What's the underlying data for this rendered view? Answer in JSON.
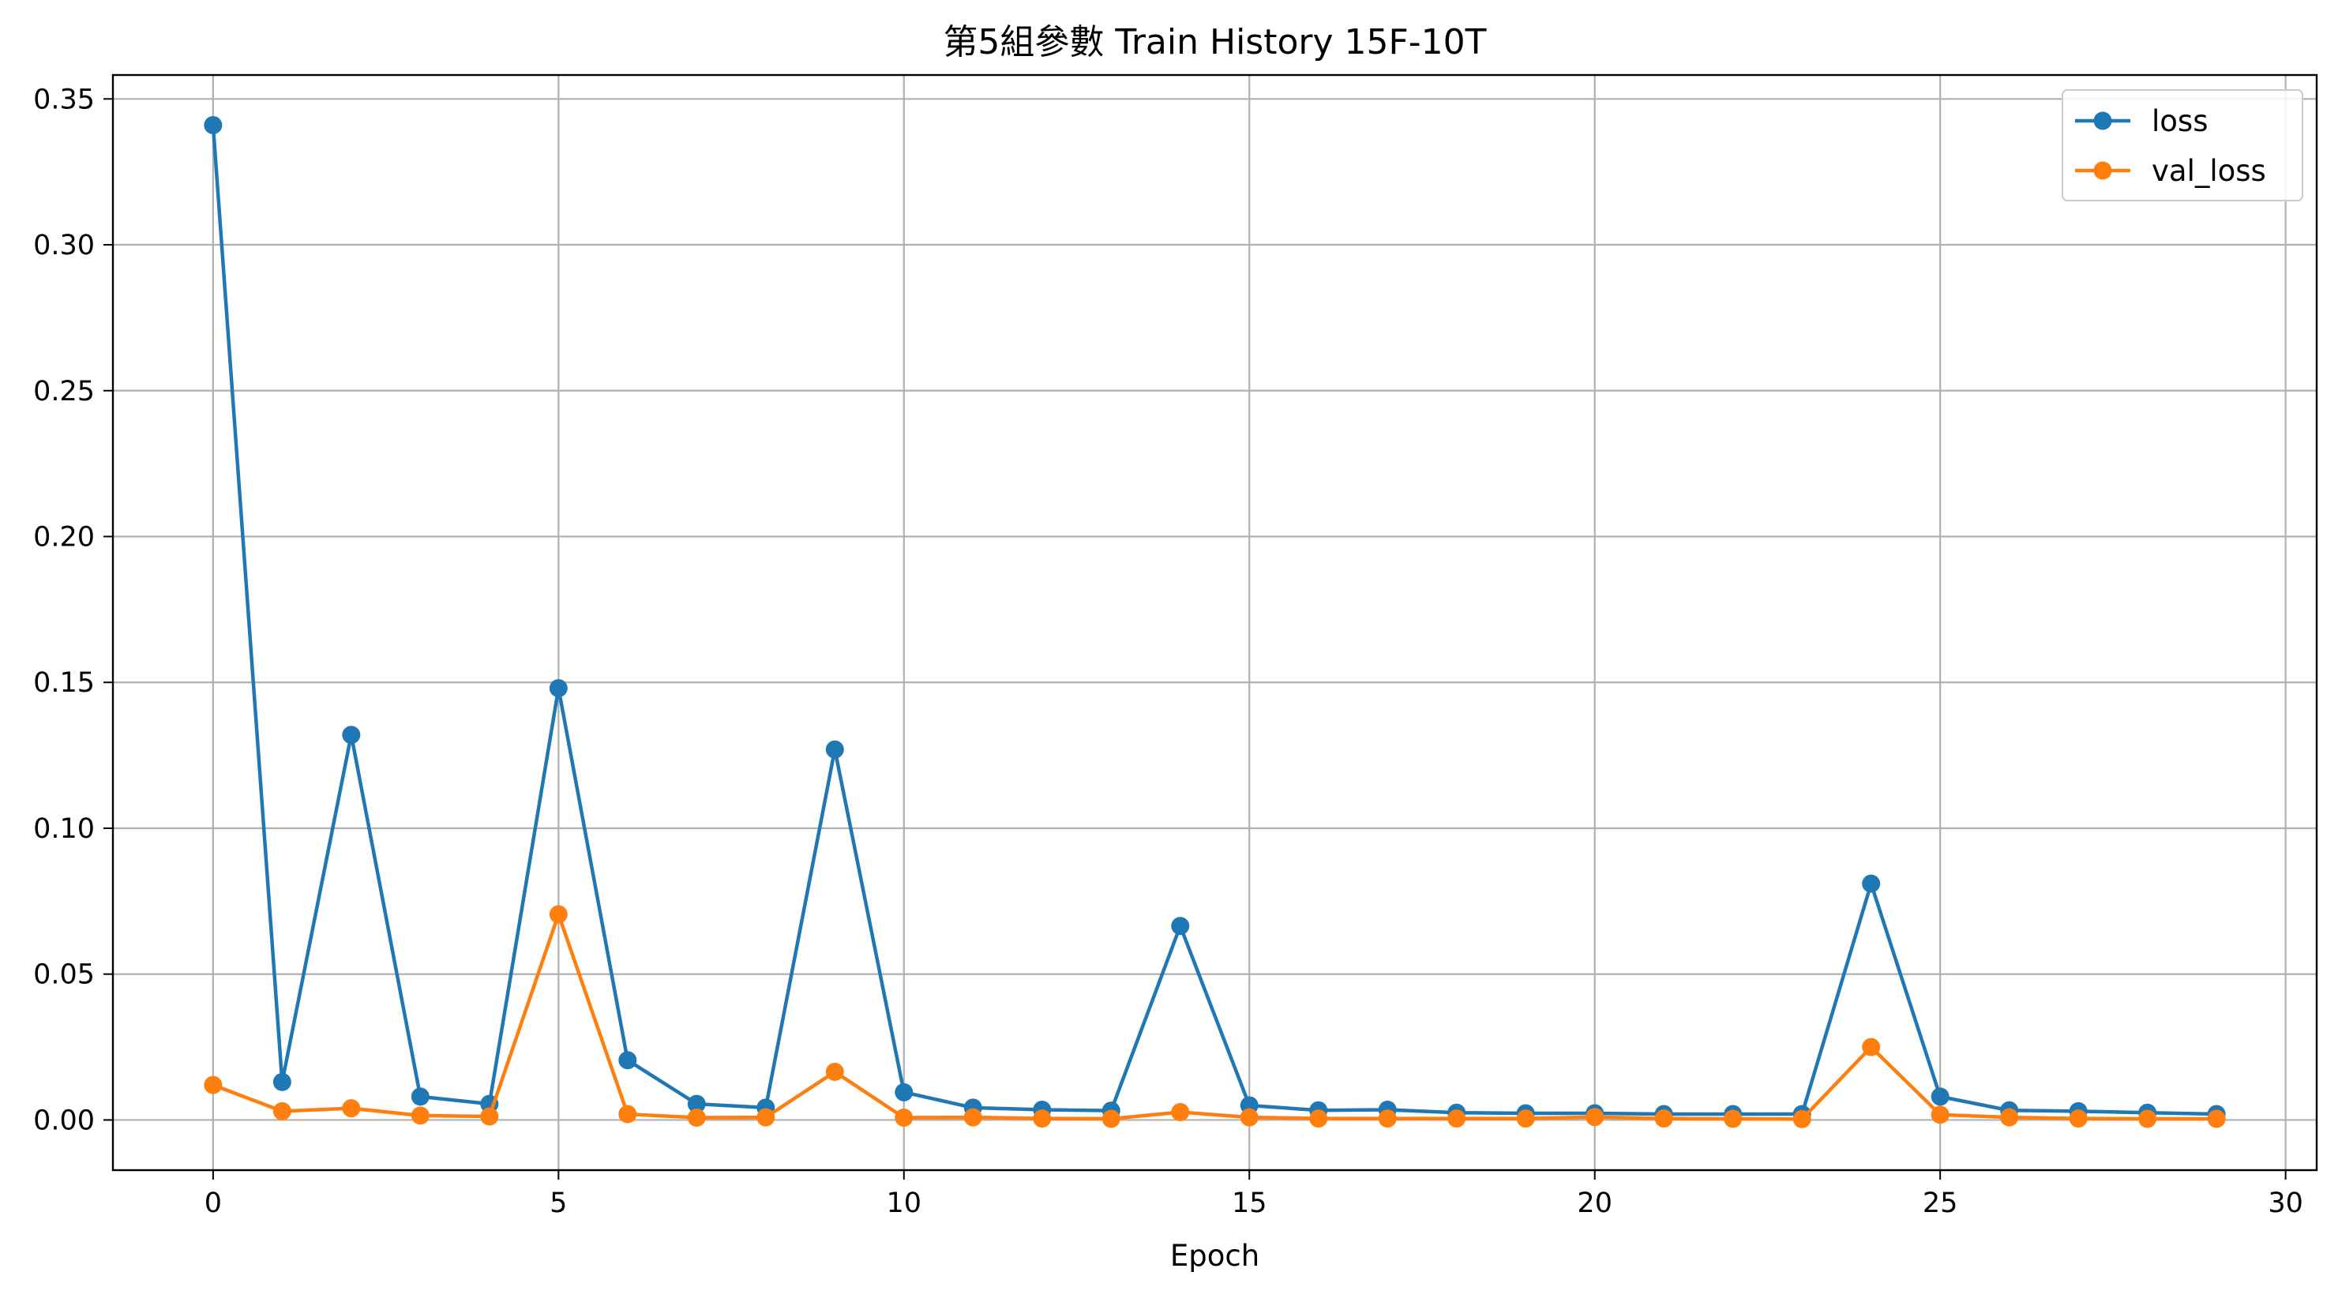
{
  "chart_data": {
    "type": "line",
    "title": "第5組參數 Train History 15F-10T",
    "xlabel": "Epoch",
    "ylabel": "",
    "xlim": [
      -1.45,
      30.45
    ],
    "ylim": [
      -0.0172,
      0.3582
    ],
    "x_ticks": [
      0,
      5,
      10,
      15,
      20,
      25,
      30
    ],
    "x_tick_labels": [
      "0",
      "5",
      "10",
      "15",
      "20",
      "25",
      "30"
    ],
    "y_ticks": [
      0.0,
      0.05,
      0.1,
      0.15,
      0.2,
      0.25,
      0.3,
      0.35
    ],
    "y_tick_labels": [
      "0.00",
      "0.05",
      "0.10",
      "0.15",
      "0.20",
      "0.25",
      "0.30",
      "0.35"
    ],
    "grid": true,
    "legend_position": "top-right",
    "x": [
      0,
      1,
      2,
      3,
      4,
      5,
      6,
      7,
      8,
      9,
      10,
      11,
      12,
      13,
      14,
      15,
      16,
      17,
      18,
      19,
      20,
      21,
      22,
      23,
      24,
      25,
      26,
      27,
      28,
      29
    ],
    "series": [
      {
        "name": "loss",
        "color": "#1f77b4",
        "marker": "circle",
        "values": [
          0.341,
          0.013,
          0.132,
          0.008,
          0.0055,
          0.148,
          0.0205,
          0.0055,
          0.0042,
          0.127,
          0.0095,
          0.0042,
          0.0035,
          0.0032,
          0.0665,
          0.005,
          0.0033,
          0.0035,
          0.0025,
          0.0023,
          0.0023,
          0.002,
          0.002,
          0.002,
          0.081,
          0.008,
          0.0033,
          0.003,
          0.0025,
          0.002
        ]
      },
      {
        "name": "val_loss",
        "color": "#ff7f0e",
        "marker": "circle",
        "values": [
          0.012,
          0.003,
          0.004,
          0.0015,
          0.0012,
          0.0705,
          0.002,
          0.0008,
          0.0009,
          0.0165,
          0.0008,
          0.0009,
          0.0005,
          0.0004,
          0.0027,
          0.0009,
          0.0005,
          0.0005,
          0.0005,
          0.0005,
          0.001,
          0.0005,
          0.0004,
          0.0003,
          0.025,
          0.0018,
          0.0009,
          0.0005,
          0.0004,
          0.0004
        ]
      }
    ]
  }
}
